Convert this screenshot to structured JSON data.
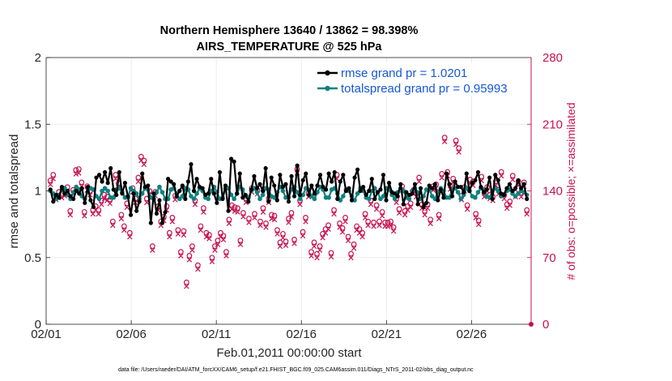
{
  "chart_data": {
    "type": "line",
    "title_line1": "Northern Hemisphere 13640 / 13862 = 98.398%",
    "title_line2": "AIRS_TEMPERATURE @ 525 hPa",
    "xlabel": "Feb.01,2011 00:00:00 start",
    "ylabel_left": "rmse and totalspread",
    "ylabel_right": "# of obs: o=possible; ×=assimilated",
    "x_ticks": [
      "02/01",
      "02/06",
      "02/11",
      "02/16",
      "02/21",
      "02/26"
    ],
    "x_tick_days": [
      0,
      5,
      10,
      15,
      20,
      25
    ],
    "x_range": [
      0,
      28.5
    ],
    "y_left_ticks": [
      "0",
      "0.5",
      "1",
      "1.5",
      "2"
    ],
    "y_left_range": [
      0,
      2
    ],
    "y_right_ticks": [
      "0",
      "70",
      "140",
      "210",
      "280"
    ],
    "y_right_range": [
      0,
      280
    ],
    "footnote": "data file: /Users/raeder/DAI/ATM_forcXX/CAM6_setup/f.e21.FHIST_BGC.f09_025.CAM6assim.011/Diags_NTrS_2011-02/obs_diag_output.nc",
    "colors": {
      "rmse": "#000000",
      "spread": "#0f8080",
      "obs": "#c8104f",
      "grid": "#e6e6e6"
    },
    "series": [
      {
        "name": "rmse grand pr = 1.0201",
        "values": [
          1.01,
          0.92,
          0.97,
          0.95,
          1.03,
          0.98,
          1.0,
          0.96,
          0.94,
          1.0,
          0.98,
          1.02,
          0.91,
          1.03,
          0.93,
          0.88,
          1.1,
          1.12,
          1.07,
          1.14,
          1.06,
          1.17,
          1.01,
          0.97,
          1.14,
          0.98,
          1.06,
          0.96,
          0.82,
          0.98,
          0.85,
          0.92,
          1.13,
          1.03,
          1.04,
          0.76,
          0.98,
          0.83,
          0.93,
          0.76,
          0.84,
          1.09,
          1.07,
          1.05,
          0.96,
          1.0,
          1.04,
          0.94,
          1.07,
          1.2,
          1.0,
          1.09,
          1.03,
          1.02,
          0.97,
          0.98,
          1.09,
          0.98,
          0.91,
          1.14,
          0.94,
          1.04,
          0.85,
          1.24,
          1.22,
          0.98,
          1.13,
          0.95,
          0.97,
          0.92,
          1.01,
          1.11,
          1.02,
          1.05,
          1.0,
          1.17,
          0.92,
          1.1,
          1.04,
          0.93,
          1.12,
          1.03,
          1.05,
          0.92,
          1.11,
          0.96,
          1.19,
          0.97,
          1.08,
          1.13,
          0.97,
          1.04,
          0.98,
          1.04,
          1.12,
          1.03,
          1.01,
          1.13,
          1.07,
          1.14,
          0.94,
          1.07,
          1.12,
          1.0,
          1.02,
          0.93,
          1.1,
          1.16,
          1.0,
          1.03,
          0.97,
          1.0,
          1.09,
          0.94,
          0.99,
          1.01,
          1.12,
          0.93,
          1.06,
          0.99,
          0.98,
          0.96,
          1.05,
          0.9,
          0.99,
          0.97,
          0.98,
          1.05,
          0.9,
          1.02,
          0.88,
          0.91,
          1.04,
          1.02,
          1.05,
          0.93,
          1.01,
          0.95,
          1.13,
          1.05,
          0.96,
          1.07,
          1.03,
          1.03,
          0.99,
          1.13,
          1.0,
          1.06,
          1.08,
          1.14,
          1.03,
          0.99,
          1.01,
          1.1,
          0.94,
          1.12,
          1.08,
          0.98,
          0.97,
          1.02,
          1.05,
          1.0,
          1.02,
          1.08,
          1.02,
          1.05,
          0.94
        ]
      },
      {
        "name": "totalspread grand pr = 0.95993",
        "values": [
          1.0,
          0.98,
          0.94,
          0.97,
          1.01,
          1.02,
          0.97,
          0.94,
          0.99,
          1.03,
          1.01,
          0.96,
          0.94,
          0.99,
          1.02,
          1.01,
          0.96,
          0.94,
          1.0,
          1.02,
          1.0,
          0.95,
          0.95,
          1.01,
          1.02,
          0.99,
          0.95,
          0.95,
          1.02,
          1.0,
          0.98,
          0.94,
          0.98,
          1.02,
          1.01,
          0.95,
          0.94,
          0.99,
          1.03,
          0.99,
          0.94,
          0.94,
          1.01,
          1.02,
          0.98,
          0.94,
          0.96,
          1.02,
          1.01,
          0.96,
          0.94,
          0.98,
          1.02,
          1.0,
          0.95,
          0.94,
          1.0,
          1.03,
          0.99,
          0.94,
          0.95,
          1.02,
          1.02,
          0.97,
          0.94,
          0.98,
          1.03,
          1.01,
          0.96,
          0.95,
          1.0,
          1.02,
          0.99,
          0.94,
          0.97,
          1.02,
          1.01,
          0.96,
          0.95,
          0.99,
          1.03,
          1.0,
          0.95,
          0.95,
          1.01,
          1.03,
          0.99,
          0.94,
          0.97,
          1.02,
          1.01,
          0.96,
          0.94,
          0.99,
          1.03,
          1.01,
          0.95,
          0.95,
          1.01,
          1.02,
          0.98,
          0.93,
          0.96,
          1.01,
          1.0,
          0.96,
          0.93,
          0.98,
          1.02,
          1.0,
          0.95,
          0.94,
          1.0,
          1.02,
          0.99,
          0.94,
          0.96,
          1.02,
          1.01,
          0.97,
          0.94,
          0.99,
          1.02,
          1.0,
          0.95,
          0.94,
          1.0,
          1.02,
          0.99,
          0.94,
          0.96,
          1.01,
          1.01,
          0.96,
          0.94,
          0.99,
          1.02,
          1.0,
          0.95,
          0.95,
          1.01,
          1.02,
          0.99,
          0.94,
          0.97,
          1.02,
          1.0,
          0.96,
          0.95,
          0.99,
          1.02,
          1.01,
          0.96,
          0.95,
          1.0,
          1.02,
          1.0,
          0.96,
          0.97,
          1.0,
          1.01,
          0.98,
          0.96,
          0.98,
          1.0,
          0.99,
          0.97
        ]
      },
      {
        "name": "obs_count",
        "values": [
          151,
          157,
          135,
          139,
          137,
          139,
          144,
          119,
          141,
          162,
          163,
          149,
          118,
          145,
          140,
          120,
          124,
          120,
          130,
          136,
          134,
          131,
          108,
          157,
          148,
          115,
          103,
          127,
          96,
          143,
          132,
          154,
          176,
          172,
          132,
          140,
          82,
          139,
          124,
          108,
          113,
          124,
          96,
          112,
          135,
          99,
          76,
          98,
          44,
          72,
          82,
          130,
          62,
          103,
          122,
          96,
          94,
          70,
          82,
          88,
          96,
          93,
          76,
          110,
          125,
          123,
          122,
          88,
          117,
          132,
          111,
          143,
          116,
          141,
          108,
          122,
          106,
          132,
          115,
          114,
          99,
          86,
          95,
          87,
          111,
          117,
          89,
          163,
          130,
          97,
          112,
          138,
          76,
          86,
          74,
          82,
          95,
          100,
          104,
          75,
          120,
          157,
          106,
          101,
          112,
          92,
          74,
          84,
          103,
          100,
          96,
          116,
          108,
          130,
          107,
          125,
          108,
          118,
          107,
          107,
          108,
          102,
          132,
          121,
          145,
          119,
          124,
          127,
          141,
          138,
          154,
          126,
          119,
          126,
          110,
          145,
          147,
          115,
          158,
          196,
          160,
          146,
          153,
          193,
          185,
          135,
          144,
          125,
          152,
          150,
          116,
          109,
          155,
          138,
          144,
          136,
          134,
          150,
          141,
          160,
          136,
          126,
          129,
          156,
          138,
          150,
          138,
          149,
          120
        ]
      }
    ]
  }
}
